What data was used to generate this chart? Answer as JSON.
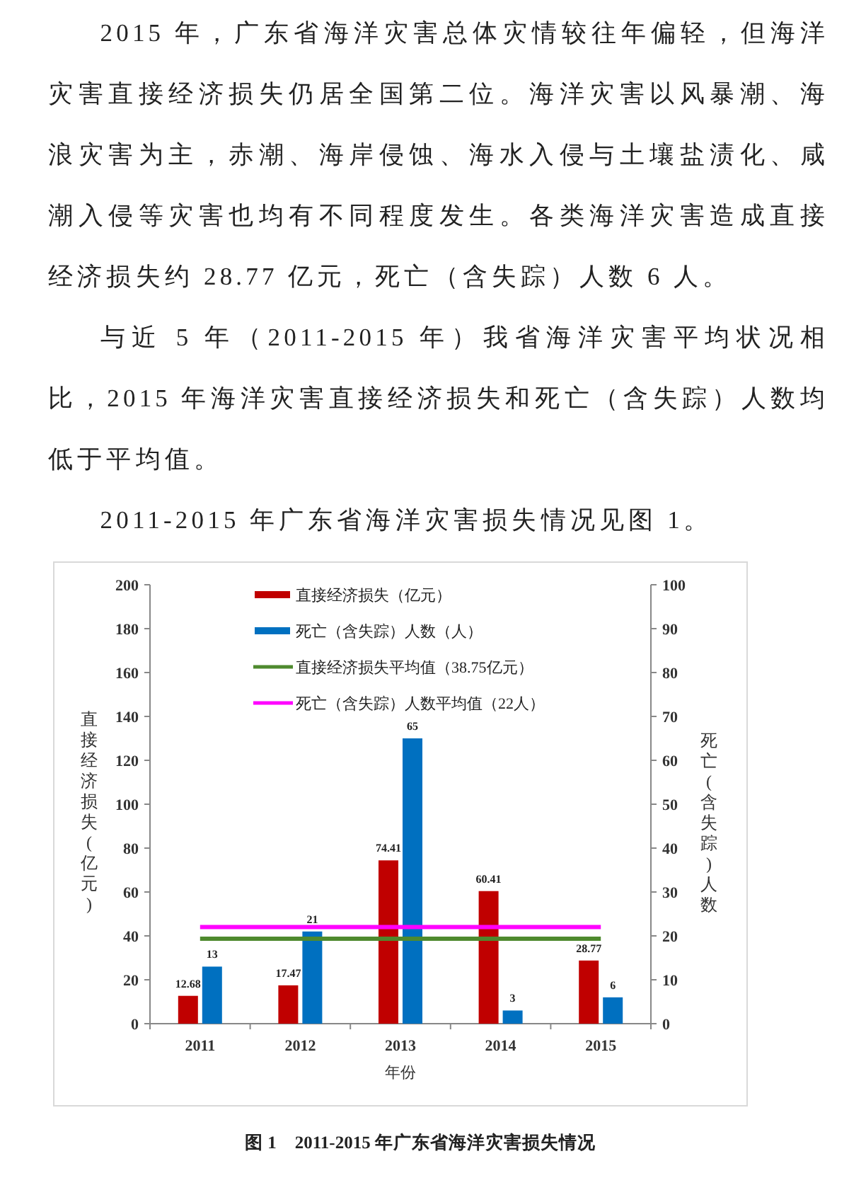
{
  "chart_data": {
    "type": "bar",
    "title": "图 1　2011-2015 年广东省海洋灾害损失情况",
    "annotations": [
      "2015 年，广东省海洋灾害总体灾情较往年偏轻，但海洋灾害直接经济损失仍居全国第二位。海洋灾害以风暴潮、海浪灾害为主，赤潮、海岸侵蚀、海水入侵与土壤盐渍化、咸潮入侵等灾害也均有不同程度发生。各类海洋灾害造成直接经济损失约 28.77 亿元，死亡（含失踪）人数 6 人。",
      "与近 5 年（2011-2015 年）我省海洋灾害平均状况相比，2015 年海洋灾害直接经济损失和死亡（含失踪）人数均低于平均值。",
      "2011-2015 年广东省海洋灾害损失情况见图 1。"
    ],
    "categories": [
      "2011",
      "2012",
      "2013",
      "2014",
      "2015"
    ],
    "series": [
      {
        "name": "直接经济损失（亿元）",
        "color": "#c00000",
        "values": [
          12.68,
          17.47,
          74.41,
          60.41,
          28.77
        ]
      },
      {
        "name": "死亡（含失踪）人数（人）",
        "color": "#0070c0",
        "axis": "y2",
        "values": [
          13,
          21,
          65,
          3,
          6
        ]
      }
    ],
    "ref_lines": [
      {
        "axis": "y",
        "value": 38.75,
        "label": "直接经济损失平均值（38.75亿元）",
        "color": "#4e8a2e"
      },
      {
        "axis": "y2",
        "value": 22,
        "label": "死亡（含失踪）人数平均值（22人）",
        "color": "#ff00ff"
      }
    ],
    "xlabel": "年份",
    "ylabel": "直接经济损失(亿元)",
    "y2label": "死亡(含失踪)人数",
    "ylim": [
      0,
      200
    ],
    "yticks": [
      0,
      20,
      40,
      60,
      80,
      100,
      120,
      140,
      160,
      180,
      200
    ],
    "y2lim": [
      0,
      100
    ],
    "y2ticks": [
      0,
      10,
      20,
      30,
      40,
      50,
      60,
      70,
      80,
      90,
      100
    ],
    "data_labels": true,
    "legend": "top",
    "grid": false
  }
}
